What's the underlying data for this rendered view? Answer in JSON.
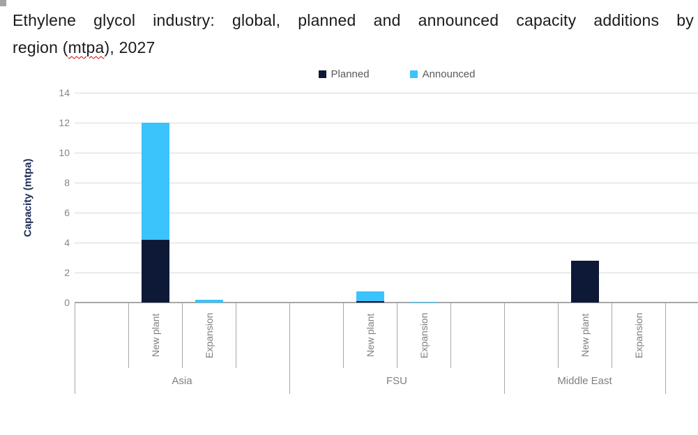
{
  "page": {
    "title_line1": "Ethylene glycol industry: global, planned and announced capacity additions by",
    "title_line2_parts": [
      "region (",
      "mtpa",
      "), 2027"
    ]
  },
  "chart_data": {
    "type": "bar",
    "stacked": true,
    "title": "Ethylene glycol industry: global, planned and announced capacity additions by region (mtpa), 2027",
    "ylabel": "Capacity (mtpa)",
    "ylim": [
      0,
      14
    ],
    "yticks": [
      0,
      2,
      4,
      6,
      8,
      10,
      12,
      14
    ],
    "grid": true,
    "legend_position": "top-center",
    "series_names": [
      "Planned",
      "Announced"
    ],
    "colors": {
      "planned": "#0d1936",
      "announced": "#3bc3fc",
      "gridline": "#d9d9d9",
      "axis": "#a6a6a6",
      "axis_text": "#7f7f7f",
      "legend_text": "#595959",
      "ylabel_text": "#1e2d58"
    },
    "groups": [
      {
        "label": "Asia",
        "bars": [
          {
            "category": "New plant",
            "planned": 4.2,
            "announced": 7.8
          },
          {
            "category": "Expansion",
            "planned": 0,
            "announced": 0.2
          }
        ]
      },
      {
        "label": "FSU",
        "bars": [
          {
            "category": "New plant",
            "planned": 0.1,
            "announced": 0.65
          },
          {
            "category": "Expansion",
            "planned": 0,
            "announced": 0.05
          }
        ]
      },
      {
        "label": "Middle East",
        "bars": [
          {
            "category": "New plant",
            "planned": 2.8,
            "announced": 0
          },
          {
            "category": "Expansion",
            "planned": 0,
            "announced": 0
          }
        ]
      }
    ]
  }
}
